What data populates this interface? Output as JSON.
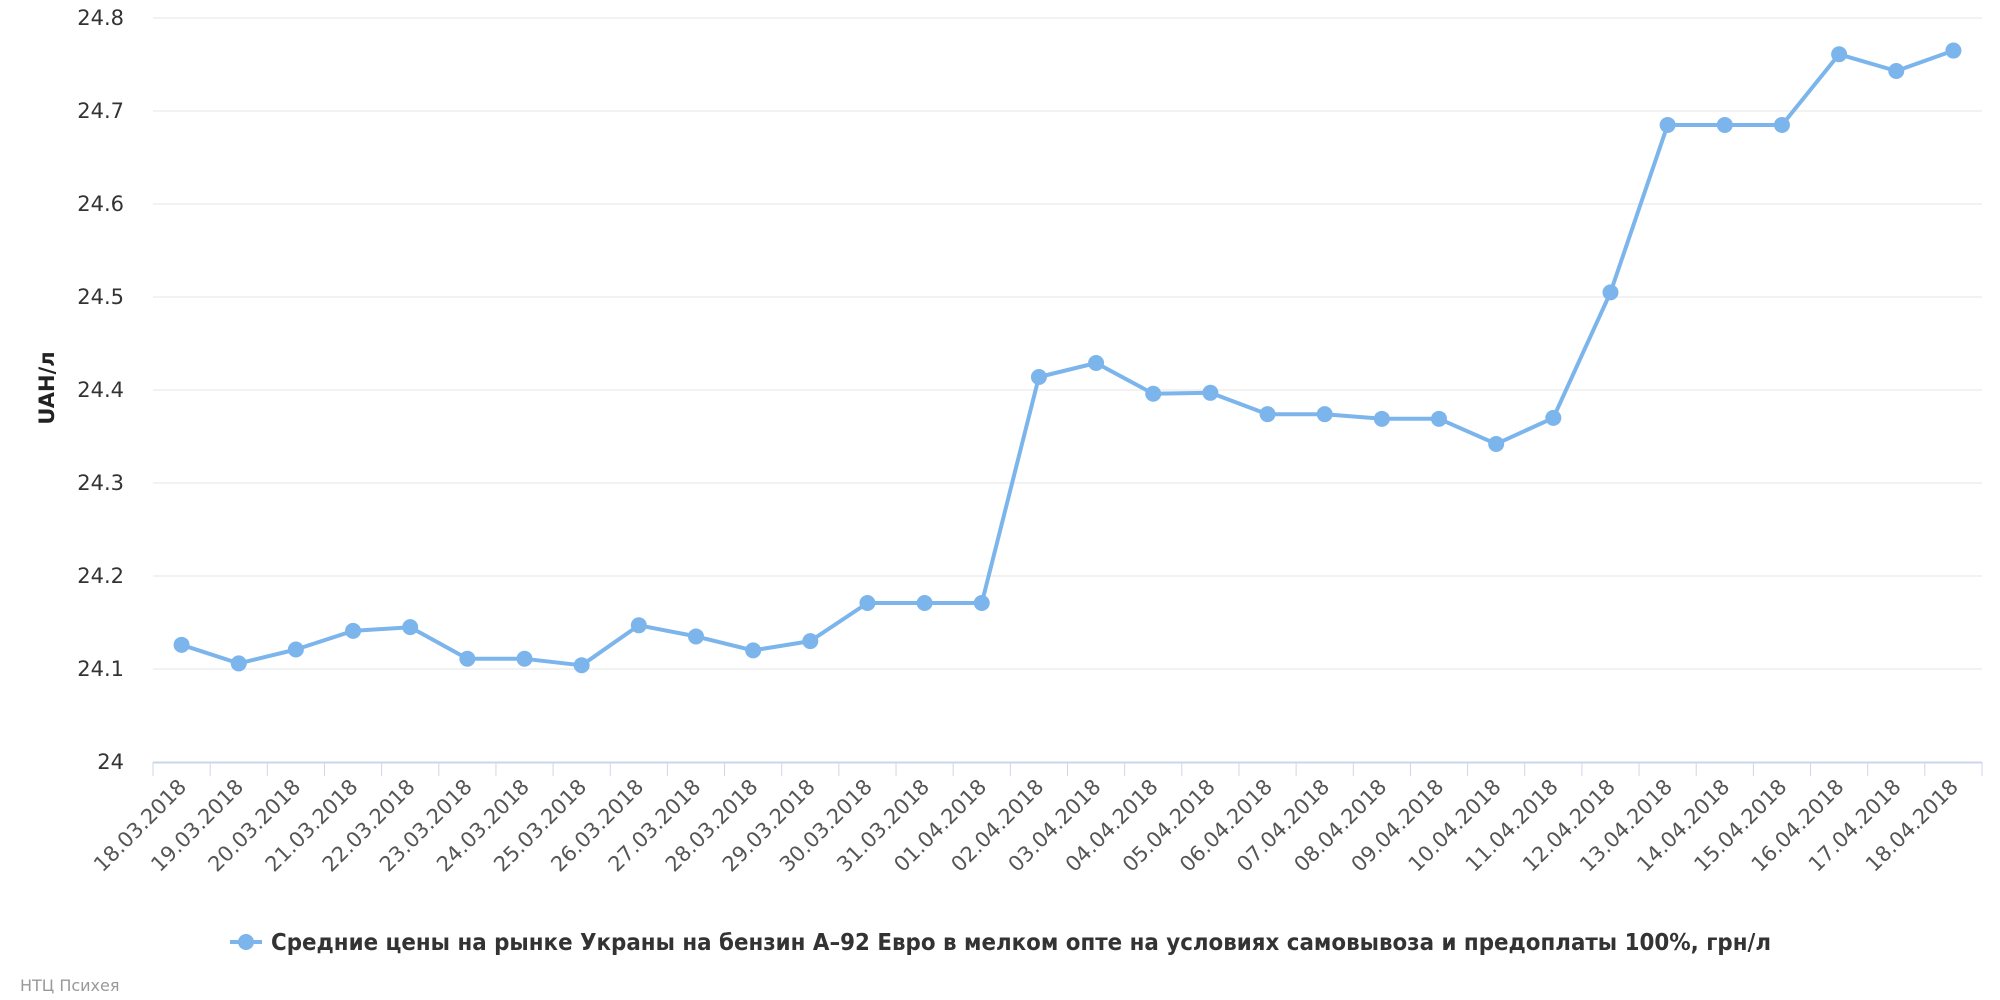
{
  "chart_data": {
    "type": "line",
    "ylabel": "UAH/л",
    "ylim": [
      24,
      24.8
    ],
    "yticks": [
      "24",
      "24.1",
      "24.2",
      "24.3",
      "24.4",
      "24.5",
      "24.6",
      "24.7",
      "24.8"
    ],
    "grid": true,
    "legend_position": "bottom-center",
    "categories": [
      "18.03.2018",
      "19.03.2018",
      "20.03.2018",
      "21.03.2018",
      "22.03.2018",
      "23.03.2018",
      "24.03.2018",
      "25.03.2018",
      "26.03.2018",
      "27.03.2018",
      "28.03.2018",
      "29.03.2018",
      "30.03.2018",
      "31.03.2018",
      "01.04.2018",
      "02.04.2018",
      "03.04.2018",
      "04.04.2018",
      "05.04.2018",
      "06.04.2018",
      "07.04.2018",
      "08.04.2018",
      "09.04.2018",
      "10.04.2018",
      "11.04.2018",
      "12.04.2018",
      "13.04.2018",
      "14.04.2018",
      "15.04.2018",
      "16.04.2018",
      "17.04.2018",
      "18.04.2018"
    ],
    "series": [
      {
        "name": "Средние цены на рынке Украны на бензин А–92 Евро в мелком опте на условиях самовывоза и предоплаты 100%, грн/л",
        "color": "#7cb5ec",
        "values": [
          24.126,
          24.106,
          24.121,
          24.141,
          24.145,
          24.111,
          24.111,
          24.104,
          24.147,
          24.135,
          24.12,
          24.13,
          24.171,
          24.171,
          24.171,
          24.414,
          24.429,
          24.396,
          24.397,
          24.374,
          24.374,
          24.369,
          24.369,
          24.342,
          24.37,
          24.505,
          24.685,
          24.685,
          24.685,
          24.761,
          24.743,
          24.765
        ]
      }
    ]
  },
  "credits": "НТЦ Психея"
}
